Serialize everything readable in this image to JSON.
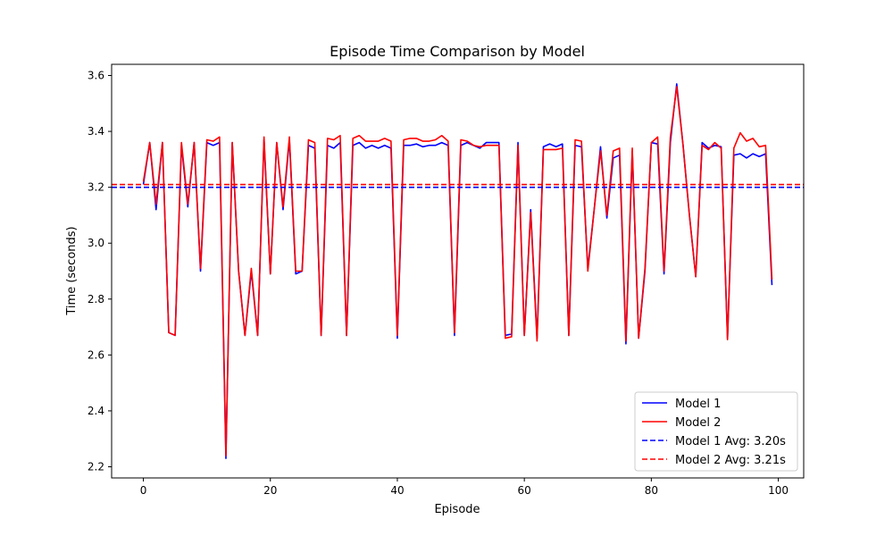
{
  "chart_data": {
    "type": "line",
    "title": "Episode Time Comparison by Model",
    "xlabel": "Episode",
    "ylabel": "Time (seconds)",
    "xlim": [
      -5,
      104
    ],
    "ylim": [
      2.16,
      3.64
    ],
    "xticks": [
      0,
      20,
      40,
      60,
      80,
      100
    ],
    "yticks": [
      2.2,
      2.4,
      2.6,
      2.8,
      3.0,
      3.2,
      3.4,
      3.6
    ],
    "legend_position": "lower-right",
    "series": [
      {
        "name": "Model 1",
        "color": "#0000ff",
        "style": "solid",
        "x": [
          0,
          1,
          2,
          3,
          4,
          5,
          6,
          7,
          8,
          9,
          10,
          11,
          12,
          13,
          14,
          15,
          16,
          17,
          18,
          19,
          20,
          21,
          22,
          23,
          24,
          25,
          26,
          27,
          28,
          29,
          30,
          31,
          32,
          33,
          34,
          35,
          36,
          37,
          38,
          39,
          40,
          41,
          42,
          43,
          44,
          45,
          46,
          47,
          48,
          49,
          50,
          51,
          52,
          53,
          54,
          55,
          56,
          57,
          58,
          59,
          60,
          61,
          62,
          63,
          64,
          65,
          66,
          67,
          68,
          69,
          70,
          71,
          72,
          73,
          74,
          75,
          76,
          77,
          78,
          79,
          80,
          81,
          82,
          83,
          84,
          85,
          86,
          87,
          88,
          89,
          90,
          91,
          92,
          93,
          94,
          95,
          96,
          97,
          98,
          99
        ],
        "values": [
          3.21,
          3.36,
          3.12,
          3.36,
          2.68,
          2.67,
          3.35,
          3.13,
          3.36,
          2.9,
          3.36,
          3.35,
          3.36,
          2.23,
          3.36,
          2.9,
          2.67,
          2.9,
          2.67,
          3.37,
          2.89,
          3.36,
          3.12,
          3.37,
          2.89,
          2.9,
          3.35,
          3.34,
          2.67,
          3.35,
          3.34,
          3.36,
          2.67,
          3.35,
          3.36,
          3.34,
          3.35,
          3.34,
          3.35,
          3.34,
          2.66,
          3.35,
          3.35,
          3.355,
          3.345,
          3.35,
          3.35,
          3.36,
          3.35,
          2.67,
          3.35,
          3.36,
          3.35,
          3.34,
          3.36,
          3.36,
          3.36,
          2.67,
          2.675,
          3.36,
          2.67,
          3.12,
          2.66,
          3.345,
          3.355,
          3.345,
          3.355,
          2.67,
          3.35,
          3.345,
          2.91,
          3.12,
          3.345,
          3.09,
          3.305,
          3.315,
          2.64,
          3.33,
          2.66,
          2.9,
          3.36,
          3.355,
          2.89,
          3.36,
          3.57,
          3.35,
          3.1,
          2.88,
          3.36,
          3.34,
          3.35,
          3.345,
          2.66,
          3.315,
          3.32,
          3.305,
          3.32,
          3.31,
          3.32,
          2.85
        ]
      },
      {
        "name": "Model 2",
        "color": "#ff0000",
        "style": "solid",
        "x": [
          0,
          1,
          2,
          3,
          4,
          5,
          6,
          7,
          8,
          9,
          10,
          11,
          12,
          13,
          14,
          15,
          16,
          17,
          18,
          19,
          20,
          21,
          22,
          23,
          24,
          25,
          26,
          27,
          28,
          29,
          30,
          31,
          32,
          33,
          34,
          35,
          36,
          37,
          38,
          39,
          40,
          41,
          42,
          43,
          44,
          45,
          46,
          47,
          48,
          49,
          50,
          51,
          52,
          53,
          54,
          55,
          56,
          57,
          58,
          59,
          60,
          61,
          62,
          63,
          64,
          65,
          66,
          67,
          68,
          69,
          70,
          71,
          72,
          73,
          74,
          75,
          76,
          77,
          78,
          79,
          80,
          81,
          82,
          83,
          84,
          85,
          86,
          87,
          88,
          89,
          90,
          91,
          92,
          93,
          94,
          95,
          96,
          97,
          98,
          99
        ],
        "values": [
          3.22,
          3.36,
          3.14,
          3.36,
          2.68,
          2.67,
          3.36,
          3.14,
          3.36,
          2.91,
          3.37,
          3.365,
          3.38,
          2.24,
          3.36,
          2.9,
          2.67,
          2.91,
          2.67,
          3.38,
          2.89,
          3.36,
          3.13,
          3.38,
          2.9,
          2.9,
          3.37,
          3.36,
          2.67,
          3.375,
          3.37,
          3.385,
          2.67,
          3.375,
          3.385,
          3.365,
          3.365,
          3.365,
          3.375,
          3.365,
          2.67,
          3.37,
          3.375,
          3.375,
          3.365,
          3.365,
          3.37,
          3.385,
          3.365,
          2.68,
          3.37,
          3.365,
          3.35,
          3.345,
          3.35,
          3.35,
          3.35,
          2.66,
          2.665,
          3.35,
          2.67,
          3.11,
          2.65,
          3.335,
          3.335,
          3.335,
          3.34,
          2.67,
          3.37,
          3.365,
          2.9,
          3.12,
          3.33,
          3.1,
          3.33,
          3.34,
          2.65,
          3.34,
          2.66,
          2.91,
          3.36,
          3.38,
          2.9,
          3.38,
          3.56,
          3.35,
          3.1,
          2.88,
          3.35,
          3.335,
          3.36,
          3.34,
          2.655,
          3.34,
          3.395,
          3.365,
          3.375,
          3.345,
          3.35,
          2.87
        ]
      }
    ],
    "reference_lines": [
      {
        "name": "Model 1 Avg: 3.20s",
        "value": 3.2,
        "color": "#0000ff",
        "style": "dashed"
      },
      {
        "name": "Model 2 Avg: 3.21s",
        "value": 3.21,
        "color": "#ff0000",
        "style": "dashed"
      }
    ]
  }
}
